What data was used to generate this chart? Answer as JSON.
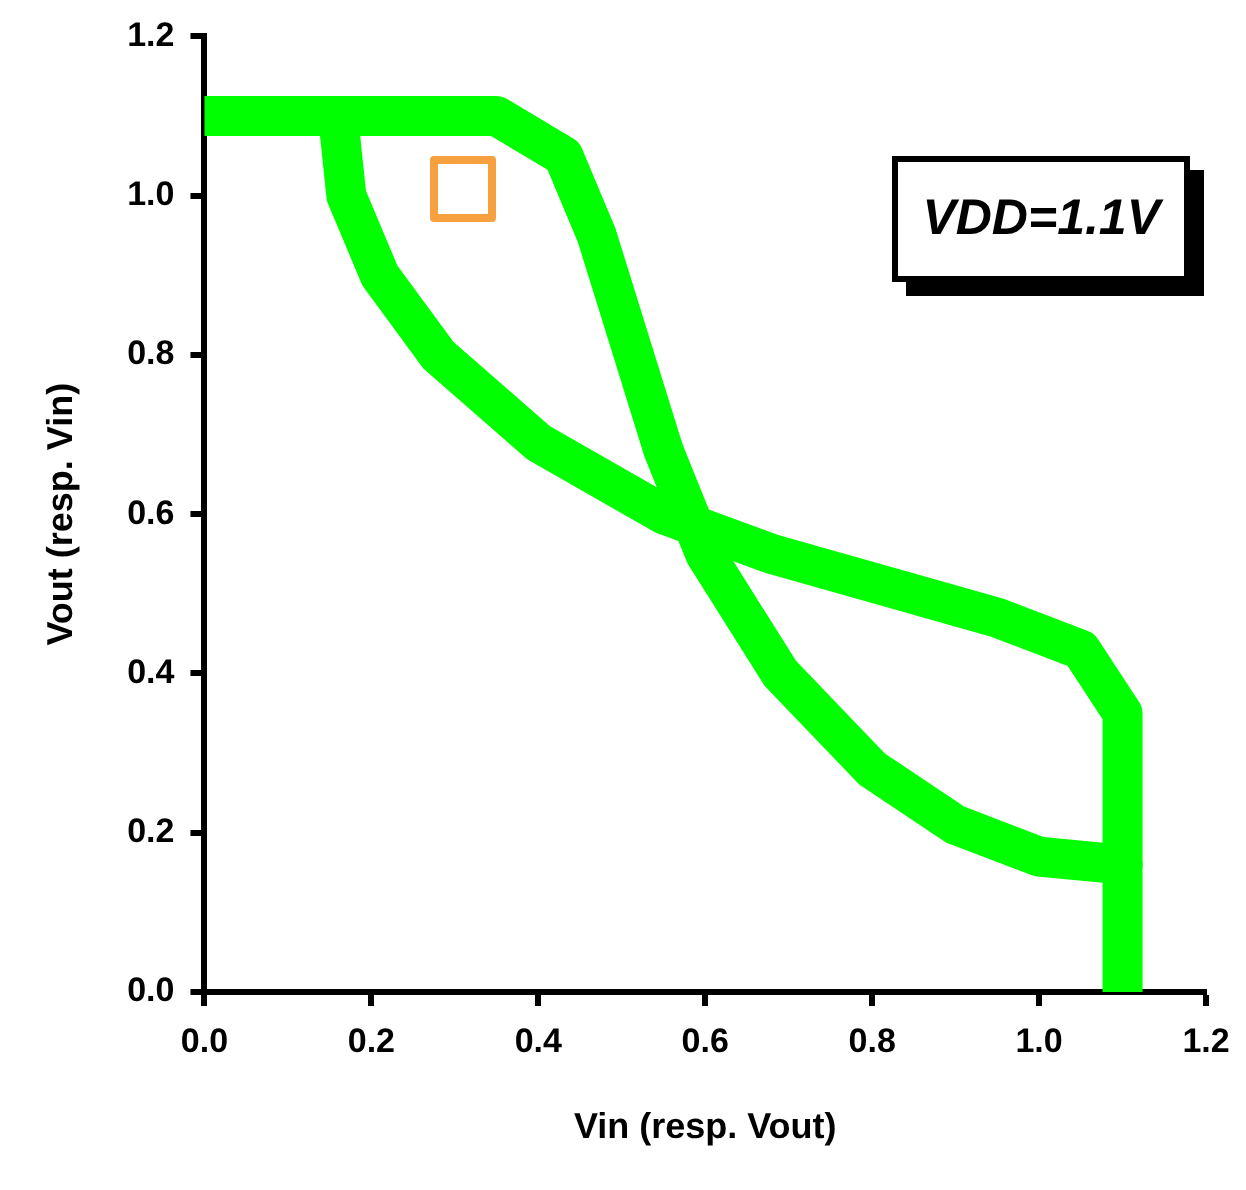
{
  "chart_data": {
    "type": "line",
    "xlabel": "Vin (resp. Vout)",
    "ylabel": "Vout (resp. Vin)",
    "annotations": [
      "VDD=1.1V"
    ],
    "xlim": [
      0,
      1.2
    ],
    "ylim": [
      0,
      1.2
    ],
    "xticks": [
      {
        "value": 0,
        "label": "0.0"
      },
      0.2,
      0.4,
      0.6,
      0.8,
      {
        "value": 1,
        "label": "1.0"
      },
      1.2
    ],
    "yticks": [
      {
        "value": 0,
        "label": "0.0"
      },
      0.2,
      0.4,
      0.6,
      0.8,
      {
        "value": 1,
        "label": "1.0"
      },
      1.2
    ],
    "grid": false,
    "legend": false,
    "marker": "none",
    "line_style": "solid",
    "series": [
      {
        "color": "#00ff00",
        "x": [
          0,
          0.35,
          0.43,
          0.47,
          0.55,
          0.6,
          0.69,
          0.8,
          0.9,
          1.0,
          1.1
        ],
        "values": [
          1.1,
          1.1,
          1.05,
          0.95,
          0.68,
          0.55,
          0.4,
          0.28,
          0.21,
          0.17,
          0.16
        ]
      },
      {
        "color": "#00ff00",
        "x": [
          1.1,
          1.1,
          1.05,
          0.95,
          0.68,
          0.55,
          0.4,
          0.28,
          0.21,
          0.17,
          0.16
        ],
        "values": [
          0,
          0.35,
          0.43,
          0.47,
          0.55,
          0.6,
          0.69,
          0.8,
          0.9,
          1.0,
          1.1
        ]
      }
    ]
  }
}
